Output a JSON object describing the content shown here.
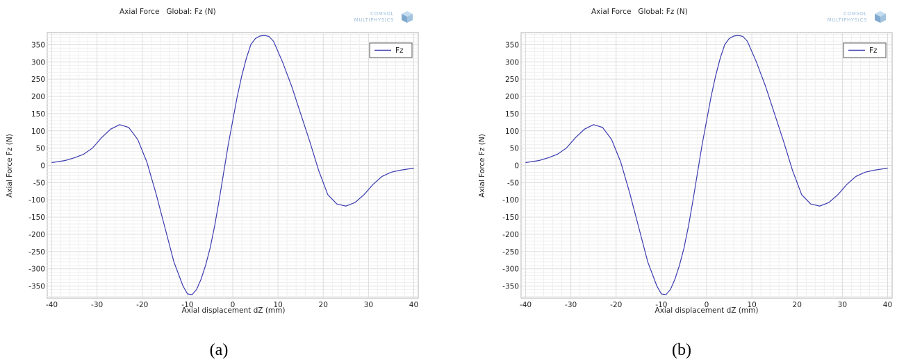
{
  "panels": [
    {
      "caption": "(a)",
      "logo_text": [
        "COMSOL",
        "MULTIPHYSICS"
      ],
      "chart_data": {
        "type": "line",
        "title_parts": [
          "Axial Force",
          "Global: Fz (N)"
        ],
        "xlabel": "Axial displacement dZ (mm)",
        "ylabel": "Axial Force Fz (N)",
        "xlim": [
          -41,
          41
        ],
        "ylim": [
          -385,
          385
        ],
        "xticks": [
          -40,
          -30,
          -20,
          -10,
          0,
          10,
          20,
          30,
          40
        ],
        "yticks": [
          350,
          300,
          250,
          200,
          150,
          100,
          50,
          0,
          -50,
          -100,
          -150,
          -200,
          -250,
          -300,
          -350
        ],
        "grid": true,
        "legend_position": "top-right",
        "series": [
          {
            "name": "Fz",
            "color": "#3b3bb0",
            "x": [
              -40,
              -37,
              -35,
              -33,
              -31,
              -29,
              -27,
              -25,
              -23,
              -21,
              -19,
              -17,
              -15,
              -13,
              -11,
              -10,
              -9,
              -8,
              -7,
              -6,
              -5,
              -4,
              -3,
              -2,
              -1,
              0,
              1,
              2,
              3,
              4,
              5,
              6,
              7,
              8,
              9,
              10,
              11,
              12,
              13,
              15,
              17,
              19,
              21,
              23,
              25,
              27,
              29,
              31,
              33,
              35,
              37,
              40
            ],
            "y": [
              8,
              14,
              22,
              32,
              50,
              80,
              105,
              118,
              110,
              75,
              10,
              -80,
              -180,
              -280,
              -350,
              -373,
              -375,
              -360,
              -330,
              -290,
              -240,
              -175,
              -100,
              -20,
              60,
              130,
              200,
              260,
              310,
              350,
              368,
              375,
              377,
              374,
              360,
              330,
              300,
              265,
              230,
              150,
              70,
              -15,
              -85,
              -112,
              -118,
              -108,
              -85,
              -55,
              -32,
              -20,
              -14,
              -8
            ]
          }
        ]
      }
    },
    {
      "caption": "(b)",
      "logo_text": [
        "COMSOL",
        "MULTIPHYSICS"
      ],
      "chart_data": {
        "type": "line",
        "title_parts": [
          "Axial Force",
          "Global: Fz (N)"
        ],
        "xlabel": "Axial displacement dZ (mm)",
        "ylabel": "Axial Force Fz (N)",
        "xlim": [
          -41,
          41
        ],
        "ylim": [
          -385,
          385
        ],
        "xticks": [
          -40,
          -30,
          -20,
          -10,
          0,
          10,
          20,
          30,
          40
        ],
        "yticks": [
          350,
          300,
          250,
          200,
          150,
          100,
          50,
          0,
          -50,
          -100,
          -150,
          -200,
          -250,
          -300,
          -350
        ],
        "grid": true,
        "legend_position": "top-right",
        "series": [
          {
            "name": "Fz",
            "color": "#3b3bb0",
            "x": [
              -40,
              -37,
              -35,
              -33,
              -31,
              -29,
              -27,
              -25,
              -23,
              -21,
              -19,
              -17,
              -15,
              -13,
              -11,
              -10,
              -9,
              -8,
              -7,
              -6,
              -5,
              -4,
              -3,
              -2,
              -1,
              0,
              1,
              2,
              3,
              4,
              5,
              6,
              7,
              8,
              9,
              10,
              11,
              12,
              13,
              15,
              17,
              19,
              21,
              23,
              25,
              27,
              29,
              31,
              33,
              35,
              37,
              40
            ],
            "y": [
              8,
              14,
              22,
              32,
              50,
              80,
              105,
              118,
              110,
              75,
              10,
              -80,
              -180,
              -280,
              -350,
              -373,
              -375,
              -360,
              -330,
              -290,
              -240,
              -175,
              -100,
              -20,
              60,
              130,
              200,
              260,
              310,
              350,
              368,
              375,
              377,
              374,
              360,
              330,
              300,
              265,
              230,
              150,
              70,
              -15,
              -85,
              -112,
              -118,
              -108,
              -85,
              -55,
              -32,
              -20,
              -14,
              -8
            ]
          }
        ]
      }
    }
  ]
}
